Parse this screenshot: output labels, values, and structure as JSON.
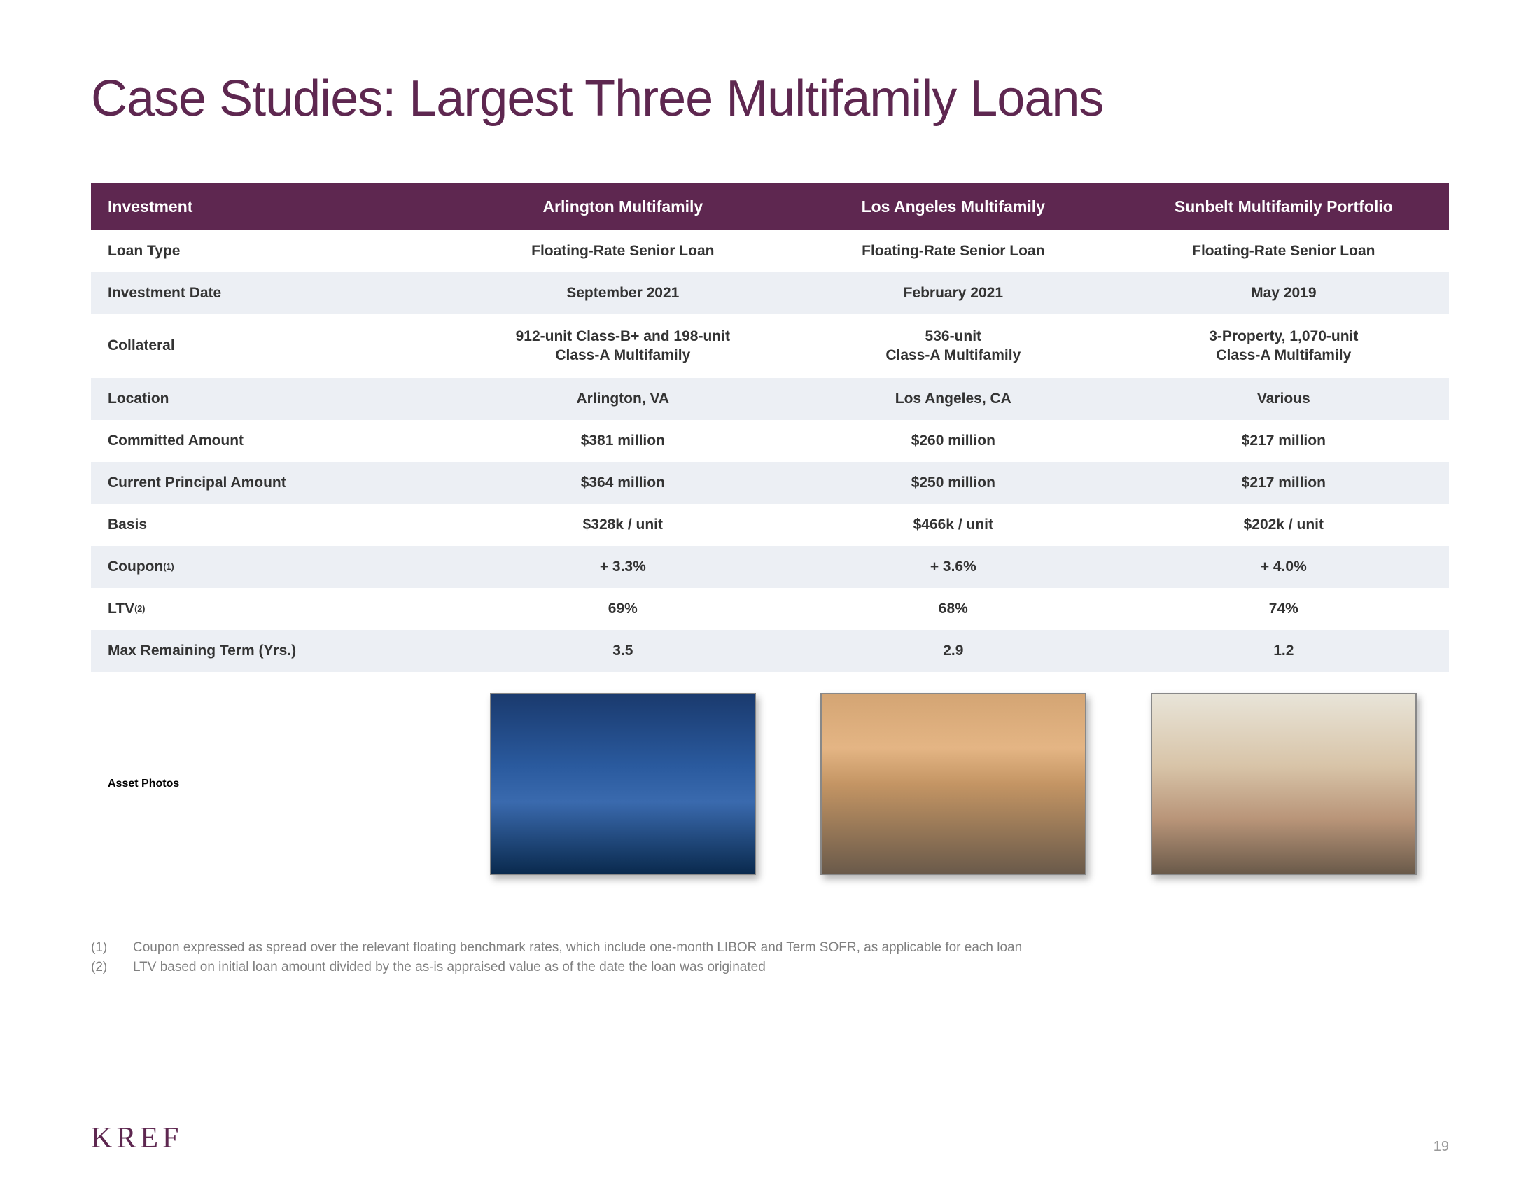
{
  "title": "Case Studies: Largest Three Multifamily Loans",
  "header": {
    "label": "Investment",
    "col1": "Arlington Multifamily",
    "col2": "Los Angeles Multifamily",
    "col3": "Sunbelt Multifamily Portfolio"
  },
  "rows": {
    "loan_type": {
      "label": "Loan Type",
      "c1": "Floating-Rate Senior Loan",
      "c2": "Floating-Rate Senior Loan",
      "c3": "Floating-Rate Senior Loan"
    },
    "inv_date": {
      "label": "Investment Date",
      "c1": "September 2021",
      "c2": "February 2021",
      "c3": "May 2019"
    },
    "collateral": {
      "label": "Collateral",
      "c1a": "912-unit Class-B+ and 198-unit",
      "c1b": "Class-A Multifamily",
      "c2a": "536-unit",
      "c2b": "Class-A Multifamily",
      "c3a": "3-Property, 1,070-unit",
      "c3b": "Class-A Multifamily"
    },
    "location": {
      "label": "Location",
      "c1": "Arlington, VA",
      "c2": "Los Angeles, CA",
      "c3": "Various"
    },
    "committed": {
      "label": "Committed Amount",
      "c1": "$381 million",
      "c2": "$260 million",
      "c3": "$217 million"
    },
    "principal": {
      "label": "Current Principal Amount",
      "c1": "$364 million",
      "c2": "$250 million",
      "c3": "$217 million"
    },
    "basis": {
      "label": "Basis",
      "c1": "$328k / unit",
      "c2": "$466k / unit",
      "c3": "$202k / unit"
    },
    "coupon": {
      "label": "Coupon",
      "sup": "(1)",
      "c1": "+ 3.3%",
      "c2": "+ 3.6%",
      "c3": "+ 4.0%"
    },
    "ltv": {
      "label": "LTV",
      "sup": "(2)",
      "c1": "69%",
      "c2": "68%",
      "c3": "74%"
    },
    "term": {
      "label": "Max Remaining Term (Yrs.)",
      "c1": "3.5",
      "c2": "2.9",
      "c3": "1.2"
    },
    "photos": {
      "label": "Asset Photos"
    }
  },
  "footnotes": {
    "f1n": "(1)",
    "f1": "Coupon expressed as spread over the relevant floating benchmark rates, which include one-month LIBOR and Term SOFR, as applicable for each loan",
    "f2n": "(2)",
    "f2": "LTV based on initial loan amount divided by the as-is appraised value as of the date the loan was originated"
  },
  "logo": "KREF",
  "page": "19",
  "colors": {
    "brand": "#5e2750",
    "row_alt": "#eceff4",
    "text": "#333333",
    "muted": "#808080"
  }
}
